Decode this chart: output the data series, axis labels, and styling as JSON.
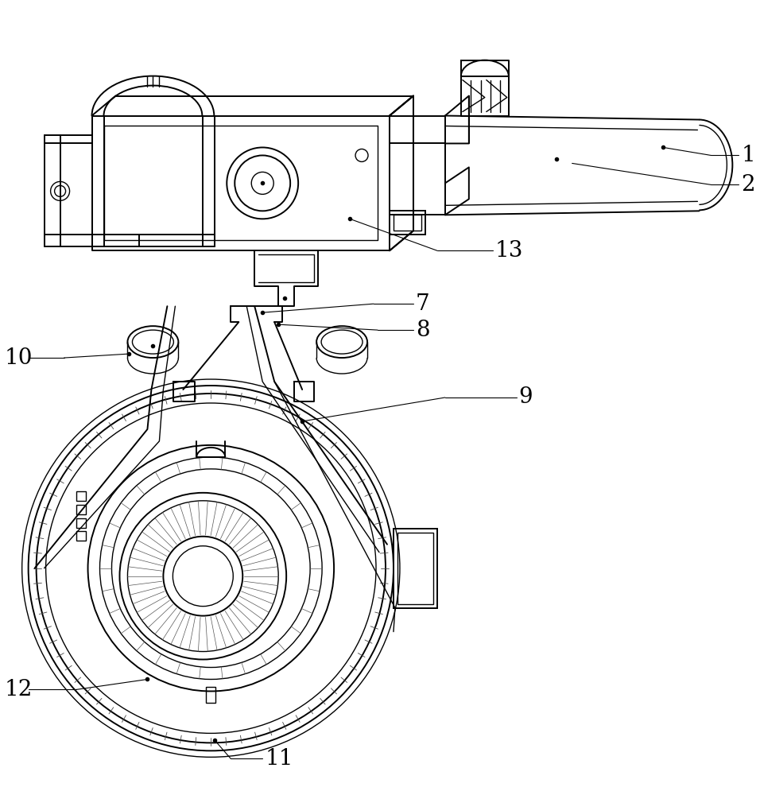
{
  "bg_color": "#ffffff",
  "line_color": "#000000",
  "figsize": [
    9.56,
    10.0
  ],
  "dpi": 100,
  "font_size": 20
}
